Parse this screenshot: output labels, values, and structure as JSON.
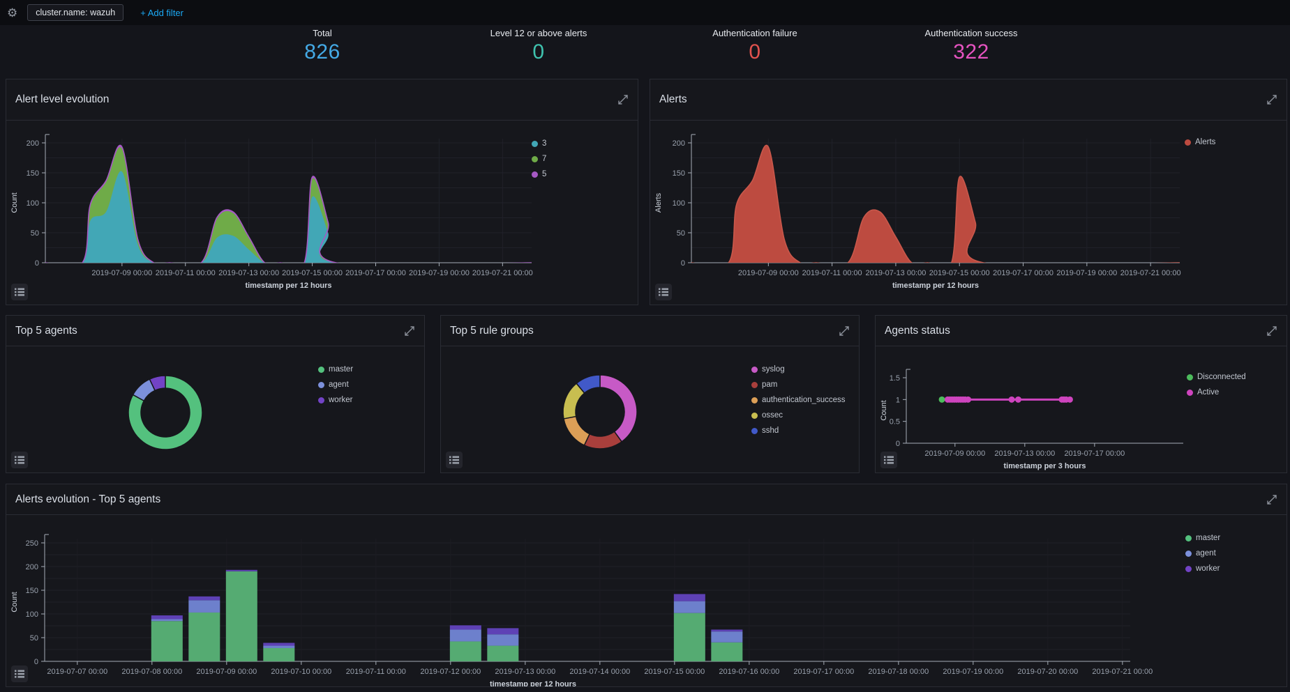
{
  "topbar": {
    "filter": "cluster.name: wazuh",
    "add_filter": "+ Add filter",
    "add_filter_color": "#1BA9F5"
  },
  "metrics": [
    {
      "label": "Total",
      "value": "826",
      "color": "#44A9E5"
    },
    {
      "label": "Level 12 or above alerts",
      "value": "0",
      "color": "#3FC2AE"
    },
    {
      "label": "Authentication failure",
      "value": "0",
      "color": "#E0524E"
    },
    {
      "label": "Authentication success",
      "value": "322",
      "color": "#E553C0"
    }
  ],
  "chart_data": [
    {
      "id": "alert-level-evolution",
      "title": "Alert level evolution",
      "type": "area",
      "stacked": true,
      "x_unit": "hours since 2019-07-07 00:00",
      "x": [
        -10,
        18,
        24,
        36,
        48,
        60,
        72,
        84,
        108,
        120,
        132,
        144,
        156,
        168,
        186,
        192,
        204,
        210,
        358
      ],
      "series": [
        {
          "name": "3",
          "color": "#42A7B6",
          "values": [
            0,
            0,
            70,
            85,
            152,
            30,
            0,
            0,
            0,
            42,
            45,
            22,
            0,
            0,
            0,
            110,
            50,
            0,
            0
          ]
        },
        {
          "name": "7",
          "color": "#6FAB48",
          "values": [
            0,
            0,
            25,
            50,
            38,
            8,
            0,
            0,
            0,
            32,
            38,
            20,
            0,
            0,
            0,
            30,
            15,
            0,
            0
          ]
        },
        {
          "name": "5",
          "color": "#A659C4",
          "values": [
            0,
            0,
            2,
            2,
            3,
            1,
            0,
            0,
            0,
            2,
            2,
            1,
            0,
            0,
            0,
            3,
            2,
            0,
            0
          ]
        }
      ],
      "ylim": [
        0,
        200
      ],
      "yticks": [
        {
          "v": 0,
          "label": "0"
        },
        {
          "v": 50,
          "label": "50"
        },
        {
          "v": 100,
          "label": "100"
        },
        {
          "v": 150,
          "label": "150"
        },
        {
          "v": 200,
          "label": "200"
        }
      ],
      "ygrid": 25,
      "xticks": [
        {
          "t": 48,
          "label": "2019-07-09 00:00"
        },
        {
          "t": 96,
          "label": "2019-07-11 00:00"
        },
        {
          "t": 144,
          "label": "2019-07-13 00:00"
        },
        {
          "t": 192,
          "label": "2019-07-15 00:00"
        },
        {
          "t": 240,
          "label": "2019-07-17 00:00"
        },
        {
          "t": 288,
          "label": "2019-07-19 00:00"
        },
        {
          "t": 336,
          "label": "2019-07-21 00:00"
        }
      ],
      "xtitle": "timestamp per 12 hours",
      "ytitle": "Count",
      "legend": [
        {
          "label": "3",
          "color": "#42A7B6"
        },
        {
          "label": "7",
          "color": "#6FAB48"
        },
        {
          "label": "5",
          "color": "#A659C4"
        }
      ]
    },
    {
      "id": "alerts",
      "title": "Alerts",
      "type": "area",
      "stacked": false,
      "x_unit": "hours since 2019-07-07 00:00",
      "x": [
        -10,
        18,
        24,
        36,
        48,
        60,
        72,
        84,
        108,
        120,
        132,
        144,
        156,
        168,
        186,
        192,
        204,
        210,
        358
      ],
      "series": [
        {
          "name": "Alerts",
          "color": "#BD4B40",
          "values": [
            0,
            0,
            97,
            137,
            193,
            39,
            0,
            0,
            0,
            76,
            85,
            43,
            0,
            0,
            0,
            143,
            67,
            0,
            0
          ]
        }
      ],
      "ylim": [
        0,
        200
      ],
      "yticks": [
        {
          "v": 0,
          "label": "0"
        },
        {
          "v": 50,
          "label": "50"
        },
        {
          "v": 100,
          "label": "100"
        },
        {
          "v": 150,
          "label": "150"
        },
        {
          "v": 200,
          "label": "200"
        }
      ],
      "ygrid": 25,
      "xticks": [
        {
          "t": 48,
          "label": "2019-07-09 00:00"
        },
        {
          "t": 96,
          "label": "2019-07-11 00:00"
        },
        {
          "t": 144,
          "label": "2019-07-13 00:00"
        },
        {
          "t": 192,
          "label": "2019-07-15 00:00"
        },
        {
          "t": 240,
          "label": "2019-07-17 00:00"
        },
        {
          "t": 288,
          "label": "2019-07-19 00:00"
        },
        {
          "t": 336,
          "label": "2019-07-21 00:00"
        }
      ],
      "xtitle": "timestamp per 12 hours",
      "ytitle": "Alerts",
      "legend": [
        {
          "label": "Alerts",
          "color": "#BD4B40"
        }
      ]
    },
    {
      "id": "top5-agents",
      "title": "Top 5 agents",
      "type": "donut",
      "slices": [
        {
          "label": "master",
          "value": 83,
          "color": "#54C17E"
        },
        {
          "label": "agent",
          "value": 10,
          "color": "#7C90DB"
        },
        {
          "label": "worker",
          "value": 7,
          "color": "#7243C6"
        }
      ],
      "legend": [
        {
          "label": "master",
          "color": "#54C17E"
        },
        {
          "label": "agent",
          "color": "#7C90DB"
        },
        {
          "label": "worker",
          "color": "#7243C6"
        }
      ]
    },
    {
      "id": "top5-rule-groups",
      "title": "Top 5 rule groups",
      "type": "donut",
      "slices": [
        {
          "label": "syslog",
          "value": 40,
          "color": "#C75AC6"
        },
        {
          "label": "pam",
          "value": 17,
          "color": "#A93F3C"
        },
        {
          "label": "authentication_success",
          "value": 15,
          "color": "#DC9F57"
        },
        {
          "label": "ossec",
          "value": 17,
          "color": "#C8BE50"
        },
        {
          "label": "sshd",
          "value": 11,
          "color": "#4159C8"
        }
      ],
      "legend": [
        {
          "label": "syslog",
          "color": "#C75AC6"
        },
        {
          "label": "pam",
          "color": "#A93F3C"
        },
        {
          "label": "authentication_success",
          "color": "#DC9F57"
        },
        {
          "label": "ossec",
          "color": "#C8BE50"
        },
        {
          "label": "sshd",
          "color": "#4159C8"
        }
      ]
    },
    {
      "id": "agents-status",
      "title": "Agents status",
      "type": "line",
      "x_unit": "hours since 2019-07-07 00:00",
      "ylim": [
        0,
        1.5
      ],
      "yticks": [
        {
          "v": 0,
          "label": "0"
        },
        {
          "v": 0.5,
          "label": "0.5"
        },
        {
          "v": 1,
          "label": "1"
        },
        {
          "v": 1.5,
          "label": "1.5"
        }
      ],
      "xticks": [
        {
          "t": 48,
          "label": "2019-07-09 00:00"
        },
        {
          "t": 144,
          "label": "2019-07-13 00:00"
        },
        {
          "t": 240,
          "label": "2019-07-17 00:00"
        }
      ],
      "xtitle": "timestamp per 3 hours",
      "ytitle": "Count",
      "series": [
        {
          "name": "Disconnected",
          "color": "#4CBB5C",
          "value": 1,
          "markers": [
            30
          ]
        },
        {
          "name": "Active",
          "color": "#CE44BE",
          "value": 1,
          "line": [
            38,
            206
          ],
          "markers": [
            38,
            41,
            44,
            47,
            50,
            53,
            56,
            59,
            62,
            66,
            126,
            135,
            195,
            198,
            201,
            206
          ]
        }
      ],
      "legend": [
        {
          "label": "Disconnected",
          "color": "#4CBB5C"
        },
        {
          "label": "Active",
          "color": "#CE44BE"
        }
      ]
    },
    {
      "id": "alerts-evolution-top5-agents",
      "title": "Alerts evolution - Top 5 agents",
      "type": "stacked-bar",
      "x_unit": "hours since 2019-07-07 00:00",
      "bucket_hours": 12,
      "x": [
        24,
        36,
        48,
        60,
        120,
        132,
        192,
        204
      ],
      "series": [
        {
          "name": "master",
          "color": "#55AB72",
          "values": [
            85,
            103,
            190,
            28,
            42,
            33,
            102,
            40
          ]
        },
        {
          "name": "agent",
          "color": "#6D80CC",
          "values": [
            4,
            26,
            0,
            5,
            25,
            24,
            25,
            23
          ]
        },
        {
          "name": "worker",
          "color": "#5E41B5",
          "values": [
            8,
            8,
            3,
            6,
            9,
            13,
            15,
            4
          ]
        }
      ],
      "ylim": [
        0,
        250
      ],
      "yticks": [
        {
          "v": 0,
          "label": "0"
        },
        {
          "v": 50,
          "label": "50"
        },
        {
          "v": 100,
          "label": "100"
        },
        {
          "v": 150,
          "label": "150"
        },
        {
          "v": 200,
          "label": "200"
        },
        {
          "v": 250,
          "label": "250"
        }
      ],
      "ygrid": 25,
      "xticks": [
        {
          "t": 0,
          "label": "2019-07-07 00:00"
        },
        {
          "t": 24,
          "label": "2019-07-08 00:00"
        },
        {
          "t": 48,
          "label": "2019-07-09 00:00"
        },
        {
          "t": 72,
          "label": "2019-07-10 00:00"
        },
        {
          "t": 96,
          "label": "2019-07-11 00:00"
        },
        {
          "t": 120,
          "label": "2019-07-12 00:00"
        },
        {
          "t": 144,
          "label": "2019-07-13 00:00"
        },
        {
          "t": 168,
          "label": "2019-07-14 00:00"
        },
        {
          "t": 192,
          "label": "2019-07-15 00:00"
        },
        {
          "t": 216,
          "label": "2019-07-16 00:00"
        },
        {
          "t": 240,
          "label": "2019-07-17 00:00"
        },
        {
          "t": 264,
          "label": "2019-07-18 00:00"
        },
        {
          "t": 288,
          "label": "2019-07-19 00:00"
        },
        {
          "t": 312,
          "label": "2019-07-20 00:00"
        },
        {
          "t": 336,
          "label": "2019-07-21 00:00"
        }
      ],
      "xtitle": "timestamp per 12 hours",
      "ytitle": "Count",
      "legend": [
        {
          "label": "master",
          "color": "#54C17E"
        },
        {
          "label": "agent",
          "color": "#7C90DB"
        },
        {
          "label": "worker",
          "color": "#7243C6"
        }
      ]
    }
  ]
}
